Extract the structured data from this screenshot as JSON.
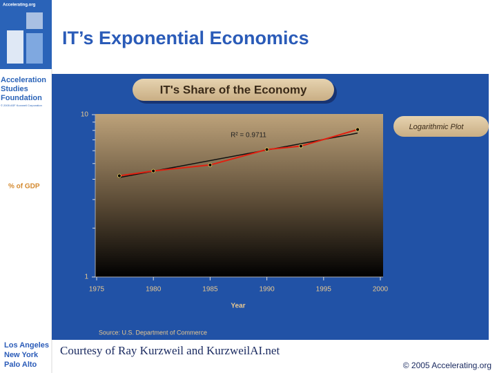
{
  "header": {
    "logo_site": "Accelerating.org",
    "org_name": [
      "Acceleration",
      "Studies",
      "Foundation"
    ],
    "org_note": "© 2005 ASF Kurzweil Corporation",
    "title": "IT’s Exponential Economics"
  },
  "chart_data": {
    "type": "line",
    "title": "IT's Share of the Economy",
    "annotation": "Logarithmic Plot",
    "fit_label": "R² = 0.9711",
    "ylabel": "% of GDP",
    "xlabel": "Year",
    "source": "Source: U.S. Department of Commerce",
    "log_y": true,
    "xlim": [
      1975,
      2000
    ],
    "xticks": [
      1975,
      1980,
      1985,
      1990,
      1995,
      2000
    ],
    "ylim": [
      1,
      10
    ],
    "yticks": [
      1,
      10
    ],
    "yminorticks": [
      2,
      3,
      4,
      5,
      6,
      7,
      8,
      9
    ],
    "series": [
      {
        "color": "#e02010",
        "x": [
          1977,
          1980,
          1985,
          1990,
          1993,
          1998
        ],
        "values": [
          4.2,
          4.5,
          4.9,
          6.1,
          6.4,
          8.1
        ]
      }
    ],
    "trend": {
      "color": "#101010",
      "x": [
        1977,
        1998
      ],
      "values": [
        4.1,
        7.7
      ]
    }
  },
  "footer": {
    "cities": [
      "Los Angeles",
      "New York",
      "Palo Alto"
    ],
    "credit": "Courtesy of Ray Kurzweil and KurzweilAI.net",
    "copyright": "© 2005 Accelerating.org"
  }
}
